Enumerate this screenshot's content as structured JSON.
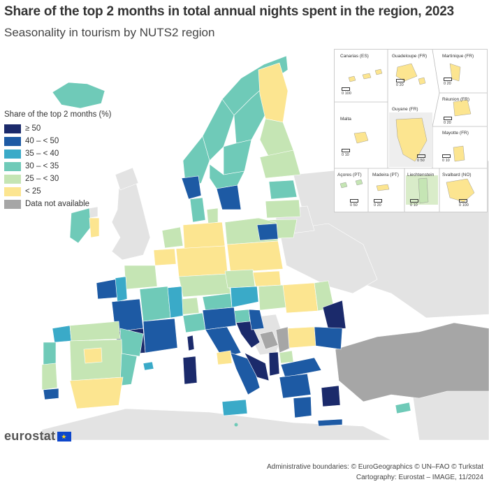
{
  "title": "Share of the top 2 months in total annual nights spent in the region, 2023",
  "subtitle": "Seasonality in tourism by NUTS2 region",
  "legend": {
    "title": "Share of the top 2 months (%)",
    "items": [
      {
        "label": "≥ 50",
        "color": "#1b2a6b"
      },
      {
        "label": "40 – < 50",
        "color": "#1d5aa4"
      },
      {
        "label": "35 – < 40",
        "color": "#3aaac8"
      },
      {
        "label": "30 – < 35",
        "color": "#6fcab8"
      },
      {
        "label": "25 – < 30",
        "color": "#c5e5b4"
      },
      {
        "label": "< 25",
        "color": "#fce590"
      },
      {
        "label": "Data not available",
        "color": "#a6a6a6"
      }
    ]
  },
  "insets": [
    {
      "name": "Canarias (ES)",
      "scale": "0  100"
    },
    {
      "name": "Guadeloupe (FR)",
      "scale": "0  20"
    },
    {
      "name": "Martinique (FR)",
      "scale": "0  20"
    },
    {
      "name": "Réunion (FR)",
      "scale": "0  20"
    },
    {
      "name": "Malta",
      "scale": "0  10"
    },
    {
      "name": "Guyane (FR)",
      "scale": "0  50"
    },
    {
      "name": "Mayotte (FR)",
      "scale": "0  10"
    },
    {
      "name": "Açores (PT)",
      "scale": "0  50"
    },
    {
      "name": "Madeira (PT)",
      "scale": "0  20"
    },
    {
      "name": "Liechtenstein",
      "scale": "0  10"
    },
    {
      "name": "Svalbard (NO)",
      "scale": "0  100"
    }
  ],
  "colors": {
    "sea": "#ffffff",
    "non_eu_land": "#e3e3e3",
    "no_data": "#a6a6a6",
    "border": "#6c6c6c"
  },
  "logo": {
    "text": "eurostat",
    "flag_glyph": "★"
  },
  "footer": {
    "line1": "Administrative boundaries: © EuroGeographics © UN–FAO © Turkstat",
    "line2": "Cartography: Eurostat – IMAGE, 11/2024"
  }
}
